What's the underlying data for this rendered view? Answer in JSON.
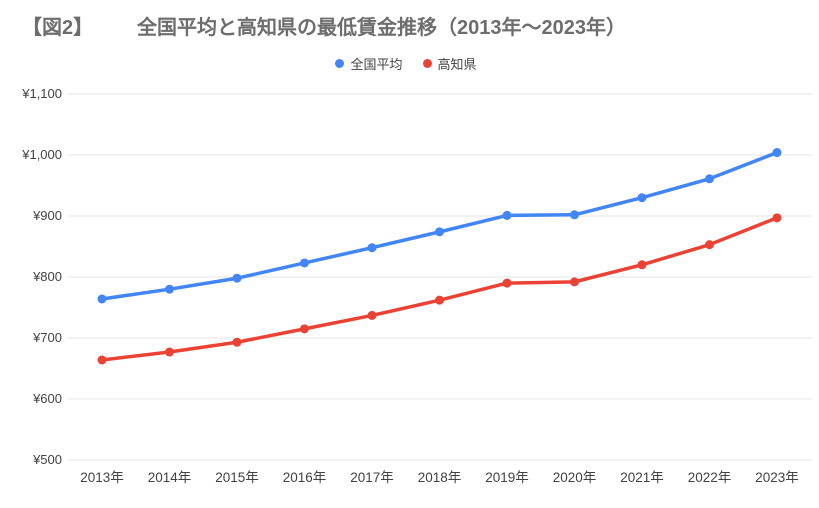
{
  "header": {
    "figure_label": "【図2】",
    "title": "全国平均と高知県の最低賃金推移（2013年～2023年）"
  },
  "legend": {
    "items": [
      {
        "label": "全国平均",
        "color": "#4285f4"
      },
      {
        "label": "高知県",
        "color": "#ea4335"
      }
    ]
  },
  "chart_data": {
    "type": "line",
    "title": "全国平均と高知県の最低賃金推移（2013年～2023年）",
    "categories": [
      "2013年",
      "2014年",
      "2015年",
      "2016年",
      "2017年",
      "2018年",
      "2019年",
      "2020年",
      "2021年",
      "2022年",
      "2023年"
    ],
    "series": [
      {
        "name": "全国平均",
        "color": "#4285f4",
        "values": [
          764,
          780,
          798,
          823,
          848,
          874,
          901,
          902,
          930,
          961,
          1004
        ]
      },
      {
        "name": "高知県",
        "color": "#ea4335",
        "values": [
          664,
          677,
          693,
          715,
          737,
          762,
          790,
          792,
          820,
          853,
          897
        ]
      }
    ],
    "xlabel": "",
    "ylabel": "",
    "ylim": [
      500,
      1100
    ],
    "ytick_step": 100,
    "ytick_labels": [
      "¥500",
      "¥600",
      "¥700",
      "¥800",
      "¥900",
      "¥1,000",
      "¥1,100"
    ],
    "grid": true,
    "legend_position": "top",
    "currency_unit": "¥"
  },
  "colors": {
    "gridline": "#e6e6e6",
    "axis_text": "#424242",
    "title_text": "#6d6d6d",
    "background": "#ffffff"
  }
}
